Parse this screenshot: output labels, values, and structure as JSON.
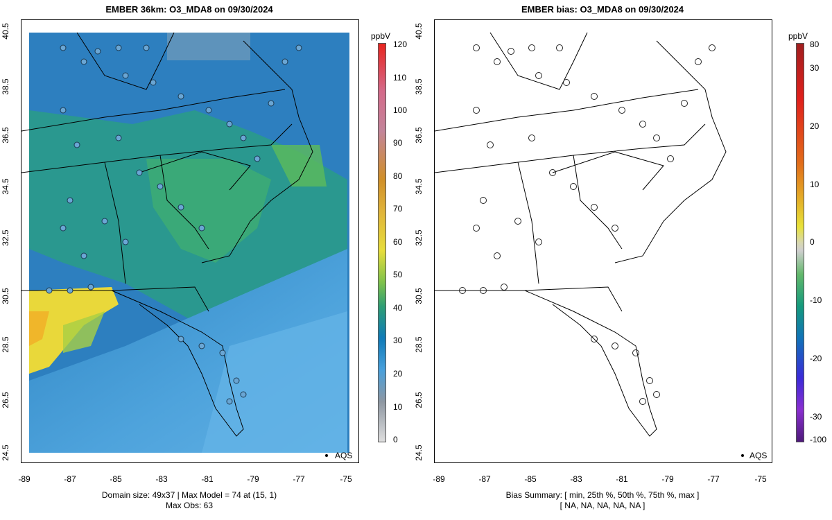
{
  "left_panel": {
    "title": "EMBER 36km: O3_MDA8 on 09/30/2024",
    "footer_line1": "Domain size: 49x37 | Max Model = 74 at (15, 1)",
    "footer_line2": "Max Obs: 63",
    "legend_label": "AQS",
    "colorbar_unit": "ppbV",
    "colorbar_ticks": [
      "0",
      "10",
      "20",
      "30",
      "40",
      "50",
      "60",
      "70",
      "80",
      "90",
      "100",
      "110",
      "120"
    ]
  },
  "right_panel": {
    "title": "EMBER bias: O3_MDA8 on 09/30/2024",
    "footer_line1": "Bias Summary: [ min, 25th %, 50th %, 75th %, max ]",
    "footer_line2": "[ NA,  NA,  NA,  NA,  NA ]",
    "legend_label": "AQS",
    "colorbar_unit": "ppbV",
    "colorbar_ticks": [
      "-100",
      "-30",
      "-20",
      "-10",
      "0",
      "10",
      "20",
      "30",
      "80"
    ]
  },
  "axes": {
    "lat_ticks": [
      "24.5",
      "26.5",
      "28.5",
      "30.5",
      "32.5",
      "34.5",
      "36.5",
      "38.5",
      "40.5"
    ],
    "lon_ticks": [
      "-89",
      "-87",
      "-85",
      "-83",
      "-81",
      "-79",
      "-77",
      "-75"
    ]
  },
  "colors": {
    "high_ozone": "#f2d22e",
    "moderate": "#2a9d7f",
    "low": "#5aa8de",
    "obs_marker": "#5b9fd0"
  }
}
